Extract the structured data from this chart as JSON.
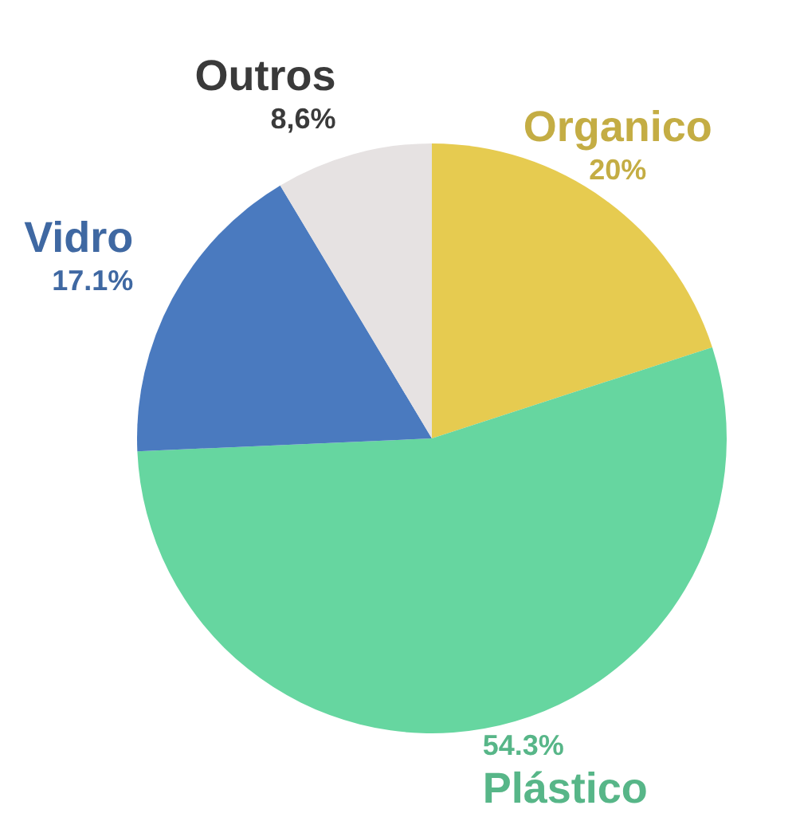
{
  "chart_data": {
    "type": "pie",
    "categories": [
      "Organico",
      "Plástico",
      "Vidro",
      "Outros"
    ],
    "values": [
      20,
      54.3,
      17.1,
      8.6
    ],
    "value_labels": [
      "20%",
      "54.3%",
      "17.1%",
      "8,6%"
    ],
    "colors": [
      "#e6cb50",
      "#66d6a0",
      "#4a7abf",
      "#e6e2e2"
    ]
  }
}
